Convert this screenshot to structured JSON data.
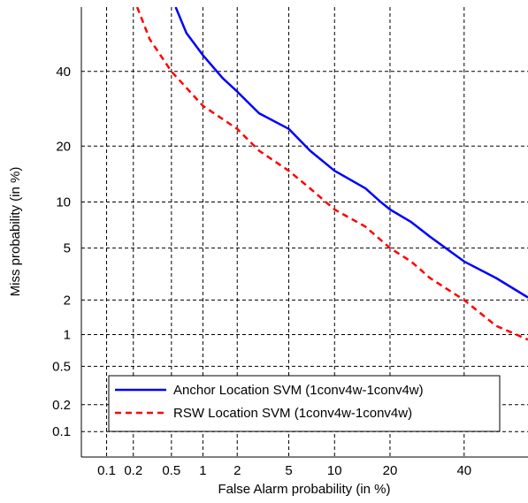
{
  "chart_data": {
    "type": "line",
    "title": "",
    "xlabel": "False Alarm probability (in %)",
    "ylabel": "Miss probability (in %)",
    "x_scale": "probit",
    "y_scale": "probit",
    "xlim": [
      0.05,
      60
    ],
    "ylim": [
      0.05,
      60
    ],
    "x_ticks": [
      0.1,
      0.2,
      0.5,
      1,
      2,
      5,
      10,
      20,
      40
    ],
    "x_tick_labels": [
      "0.1",
      "0.2",
      "0.5",
      "1",
      "2",
      "5",
      "10",
      "20",
      "40"
    ],
    "y_ticks": [
      0.1,
      0.2,
      0.5,
      1,
      2,
      5,
      10,
      20,
      40
    ],
    "y_tick_labels": [
      "0.1",
      "0.2",
      "0.5",
      "1",
      "2",
      "5",
      "10",
      "20",
      "40"
    ],
    "grid": true,
    "legend_position": "lower-left",
    "series": [
      {
        "name": "Anchor Location SVM (1conv4w-1conv4w)",
        "color": "#0000ff",
        "style": "solid",
        "x": [
          0.55,
          0.7,
          1,
          1.5,
          2,
          3,
          5,
          7,
          10,
          15,
          18,
          20,
          25,
          30,
          40,
          50,
          60
        ],
        "y": [
          60,
          52,
          45,
          38,
          34,
          28,
          24,
          19,
          15,
          12,
          10,
          9,
          7.5,
          6,
          4,
          3,
          2.1
        ]
      },
      {
        "name": "RSW Location SVM (1conv4w-1conv4w)",
        "color": "#ff0000",
        "style": "dashed",
        "x": [
          0.22,
          0.3,
          0.5,
          1,
          2,
          3,
          5,
          7,
          10,
          15,
          20,
          25,
          30,
          40,
          50,
          60
        ],
        "y": [
          60,
          50,
          40,
          30,
          24,
          19,
          15,
          12,
          9,
          7,
          5,
          4,
          3,
          2,
          1.2,
          0.9
        ]
      }
    ]
  }
}
